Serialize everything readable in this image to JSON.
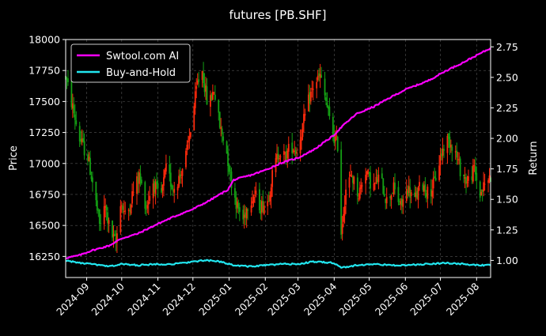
{
  "chart_data": {
    "type": "line",
    "title": "futures [PB.SHF]",
    "xlabel": "",
    "ylabel_left": "Price",
    "ylabel_right": "Return",
    "x_ticks": [
      "2024-09",
      "2024-10",
      "2024-11",
      "2024-12",
      "2025-01",
      "2025-02",
      "2025-03",
      "2025-04",
      "2025-05",
      "2025-06",
      "2025-07",
      "2025-08"
    ],
    "x_range": [
      "2024-08-14",
      "2025-08-13"
    ],
    "y_left_ticks": [
      16250,
      16500,
      16750,
      17000,
      17250,
      17500,
      17750,
      18000
    ],
    "y_left_range": [
      16080,
      18000
    ],
    "y_right_ticks": [
      1.0,
      1.25,
      1.5,
      1.75,
      2.0,
      2.25,
      2.5,
      2.75
    ],
    "y_right_tick_labels": [
      "1.00",
      "1.25",
      "1.50",
      "1.75",
      "2.00",
      "2.25",
      "2.50",
      "2.75"
    ],
    "y_right_range": [
      0.86,
      2.81
    ],
    "grid": true,
    "legend_position": "top-left",
    "candles": {
      "up_color": "#ff2a0c",
      "down_color": "#14a014",
      "anchors": [
        [
          "2024-08-14",
          17700
        ],
        [
          "2024-08-20",
          17450
        ],
        [
          "2024-08-26",
          17200
        ],
        [
          "2024-09-02",
          17050
        ],
        [
          "2024-09-07",
          16800
        ],
        [
          "2024-09-12",
          16500
        ],
        [
          "2024-09-17",
          16650
        ],
        [
          "2024-09-21",
          16450
        ],
        [
          "2024-09-26",
          16350
        ],
        [
          "2024-09-30",
          16700
        ],
        [
          "2024-10-05",
          16550
        ],
        [
          "2024-10-10",
          16750
        ],
        [
          "2024-10-16",
          16900
        ],
        [
          "2024-10-22",
          16650
        ],
        [
          "2024-10-28",
          16850
        ],
        [
          "2024-11-03",
          16700
        ],
        [
          "2024-11-08",
          16950
        ],
        [
          "2024-11-14",
          16800
        ],
        [
          "2024-11-20",
          16900
        ],
        [
          "2024-11-26",
          17100
        ],
        [
          "2024-12-01",
          17400
        ],
        [
          "2024-12-05",
          17650
        ],
        [
          "2024-12-09",
          17750
        ],
        [
          "2024-12-14",
          17450
        ],
        [
          "2024-12-19",
          17600
        ],
        [
          "2024-12-24",
          17300
        ],
        [
          "2024-12-29",
          17150
        ],
        [
          "2025-01-03",
          16850
        ],
        [
          "2025-01-08",
          16650
        ],
        [
          "2025-01-13",
          16550
        ],
        [
          "2025-01-18",
          16700
        ],
        [
          "2025-01-23",
          16750
        ],
        [
          "2025-01-28",
          16650
        ],
        [
          "2025-02-03",
          16700
        ],
        [
          "2025-02-08",
          16950
        ],
        [
          "2025-02-13",
          17100
        ],
        [
          "2025-02-18",
          17050
        ],
        [
          "2025-02-23",
          17150
        ],
        [
          "2025-02-28",
          17100
        ],
        [
          "2025-03-05",
          17300
        ],
        [
          "2025-03-10",
          17500
        ],
        [
          "2025-03-15",
          17650
        ],
        [
          "2025-03-20",
          17700
        ],
        [
          "2025-03-25",
          17500
        ],
        [
          "2025-03-30",
          17250
        ],
        [
          "2025-04-04",
          17150
        ],
        [
          "2025-04-07",
          16450
        ],
        [
          "2025-04-11",
          16800
        ],
        [
          "2025-04-16",
          16900
        ],
        [
          "2025-04-22",
          16750
        ],
        [
          "2025-04-28",
          16950
        ],
        [
          "2025-05-04",
          16800
        ],
        [
          "2025-05-10",
          16900
        ],
        [
          "2025-05-16",
          16700
        ],
        [
          "2025-05-22",
          16800
        ],
        [
          "2025-05-28",
          16650
        ],
        [
          "2025-06-03",
          16800
        ],
        [
          "2025-06-09",
          16700
        ],
        [
          "2025-06-15",
          16850
        ],
        [
          "2025-06-21",
          16750
        ],
        [
          "2025-06-26",
          16850
        ],
        [
          "2025-07-01",
          17050
        ],
        [
          "2025-07-06",
          17200
        ],
        [
          "2025-07-12",
          17150
        ],
        [
          "2025-07-18",
          16950
        ],
        [
          "2025-07-24",
          16850
        ],
        [
          "2025-07-30",
          16950
        ],
        [
          "2025-08-04",
          16750
        ],
        [
          "2025-08-09",
          16850
        ],
        [
          "2025-08-13",
          16900
        ]
      ]
    },
    "series": [
      {
        "name": "Swtool.com AI",
        "color": "#ff00ff",
        "axis": "right",
        "points": [
          [
            "2024-08-14",
            1.02
          ],
          [
            "2024-08-25",
            1.04
          ],
          [
            "2024-09-05",
            1.08
          ],
          [
            "2024-09-20",
            1.12
          ],
          [
            "2024-10-01",
            1.18
          ],
          [
            "2024-10-15",
            1.22
          ],
          [
            "2024-11-01",
            1.3
          ],
          [
            "2024-11-15",
            1.36
          ],
          [
            "2024-12-01",
            1.42
          ],
          [
            "2024-12-15",
            1.49
          ],
          [
            "2024-12-31",
            1.58
          ],
          [
            "2025-01-05",
            1.66
          ],
          [
            "2025-01-20",
            1.7
          ],
          [
            "2025-02-01",
            1.74
          ],
          [
            "2025-02-15",
            1.8
          ],
          [
            "2025-03-01",
            1.84
          ],
          [
            "2025-03-15",
            1.91
          ],
          [
            "2025-03-31",
            2.02
          ],
          [
            "2025-04-08",
            2.1
          ],
          [
            "2025-04-20",
            2.2
          ],
          [
            "2025-05-05",
            2.26
          ],
          [
            "2025-05-20",
            2.34
          ],
          [
            "2025-06-01",
            2.4
          ],
          [
            "2025-06-20",
            2.47
          ],
          [
            "2025-07-05",
            2.55
          ],
          [
            "2025-07-20",
            2.62
          ],
          [
            "2025-08-01",
            2.68
          ],
          [
            "2025-08-13",
            2.74
          ]
        ]
      },
      {
        "name": "Buy-and-Hold",
        "color": "#22e6ef",
        "axis": "right",
        "points": [
          [
            "2024-08-14",
            1.0
          ],
          [
            "2024-08-25",
            0.98
          ],
          [
            "2024-09-05",
            0.97
          ],
          [
            "2024-09-20",
            0.95
          ],
          [
            "2024-10-01",
            0.97
          ],
          [
            "2024-10-15",
            0.96
          ],
          [
            "2024-11-01",
            0.97
          ],
          [
            "2024-11-15",
            0.97
          ],
          [
            "2024-12-01",
            0.99
          ],
          [
            "2024-12-12",
            1.0
          ],
          [
            "2024-12-25",
            0.99
          ],
          [
            "2025-01-05",
            0.96
          ],
          [
            "2025-01-20",
            0.95
          ],
          [
            "2025-02-01",
            0.96
          ],
          [
            "2025-02-15",
            0.97
          ],
          [
            "2025-03-01",
            0.97
          ],
          [
            "2025-03-15",
            0.99
          ],
          [
            "2025-03-31",
            0.98
          ],
          [
            "2025-04-07",
            0.94
          ],
          [
            "2025-04-20",
            0.96
          ],
          [
            "2025-05-05",
            0.97
          ],
          [
            "2025-05-20",
            0.96
          ],
          [
            "2025-06-01",
            0.96
          ],
          [
            "2025-06-20",
            0.97
          ],
          [
            "2025-07-05",
            0.98
          ],
          [
            "2025-07-20",
            0.97
          ],
          [
            "2025-08-01",
            0.96
          ],
          [
            "2025-08-13",
            0.96
          ]
        ]
      }
    ]
  }
}
